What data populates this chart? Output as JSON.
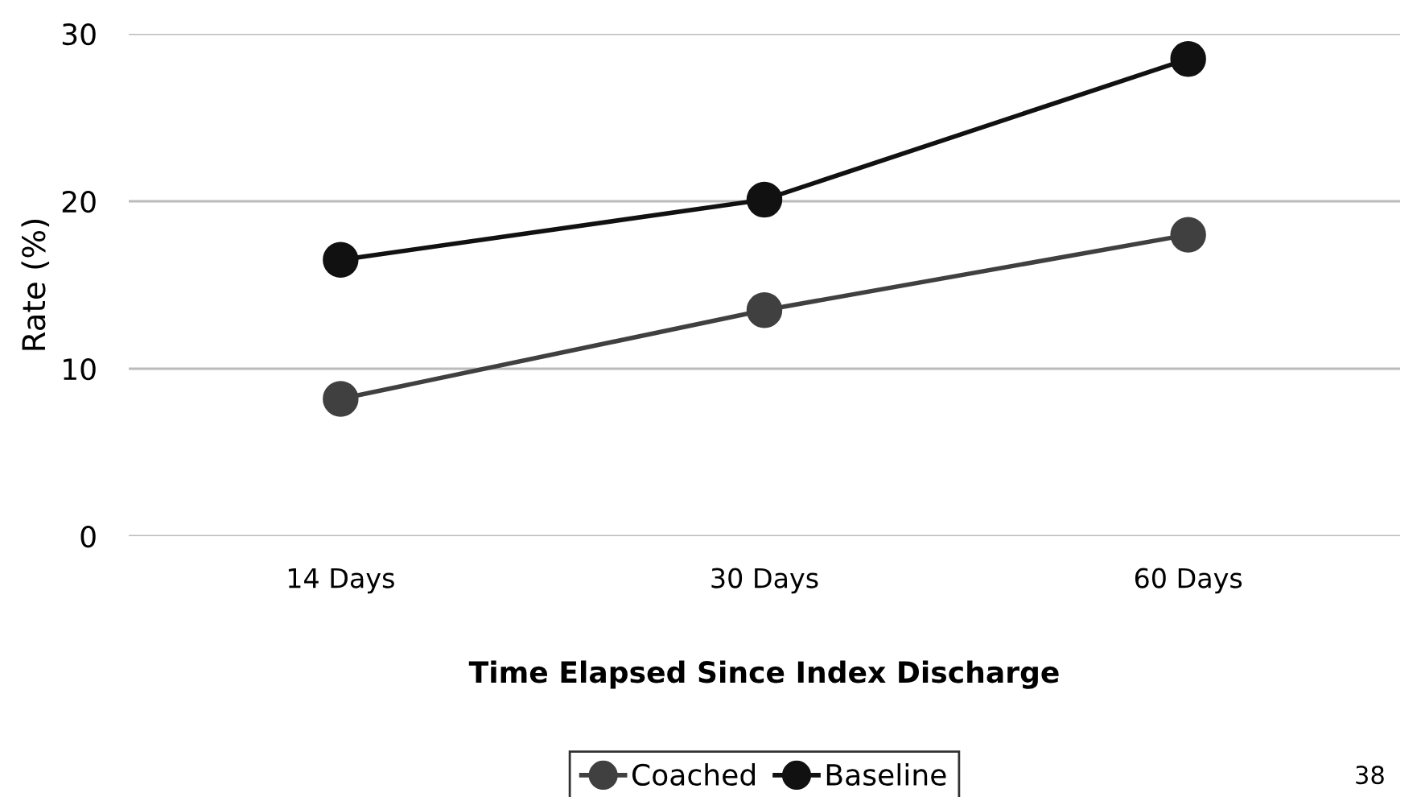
{
  "chart_data": {
    "type": "line",
    "xlabel": "Time Elapsed Since Index Discharge",
    "ylabel": "Rate (%)",
    "categories": [
      "14 Days",
      "30 Days",
      "60 Days"
    ],
    "series": [
      {
        "name": "Coached",
        "color": "#404040",
        "values": [
          8.2,
          13.5,
          18.0
        ]
      },
      {
        "name": "Baseline",
        "color": "#111111",
        "values": [
          16.5,
          20.1,
          28.5
        ]
      }
    ],
    "ylim": [
      0,
      30
    ],
    "yticks": [
      0,
      10,
      20,
      30
    ],
    "grid": "y",
    "legend": "bottom",
    "marker": "circle",
    "line_style": "solid",
    "annotations": [
      "38"
    ]
  }
}
